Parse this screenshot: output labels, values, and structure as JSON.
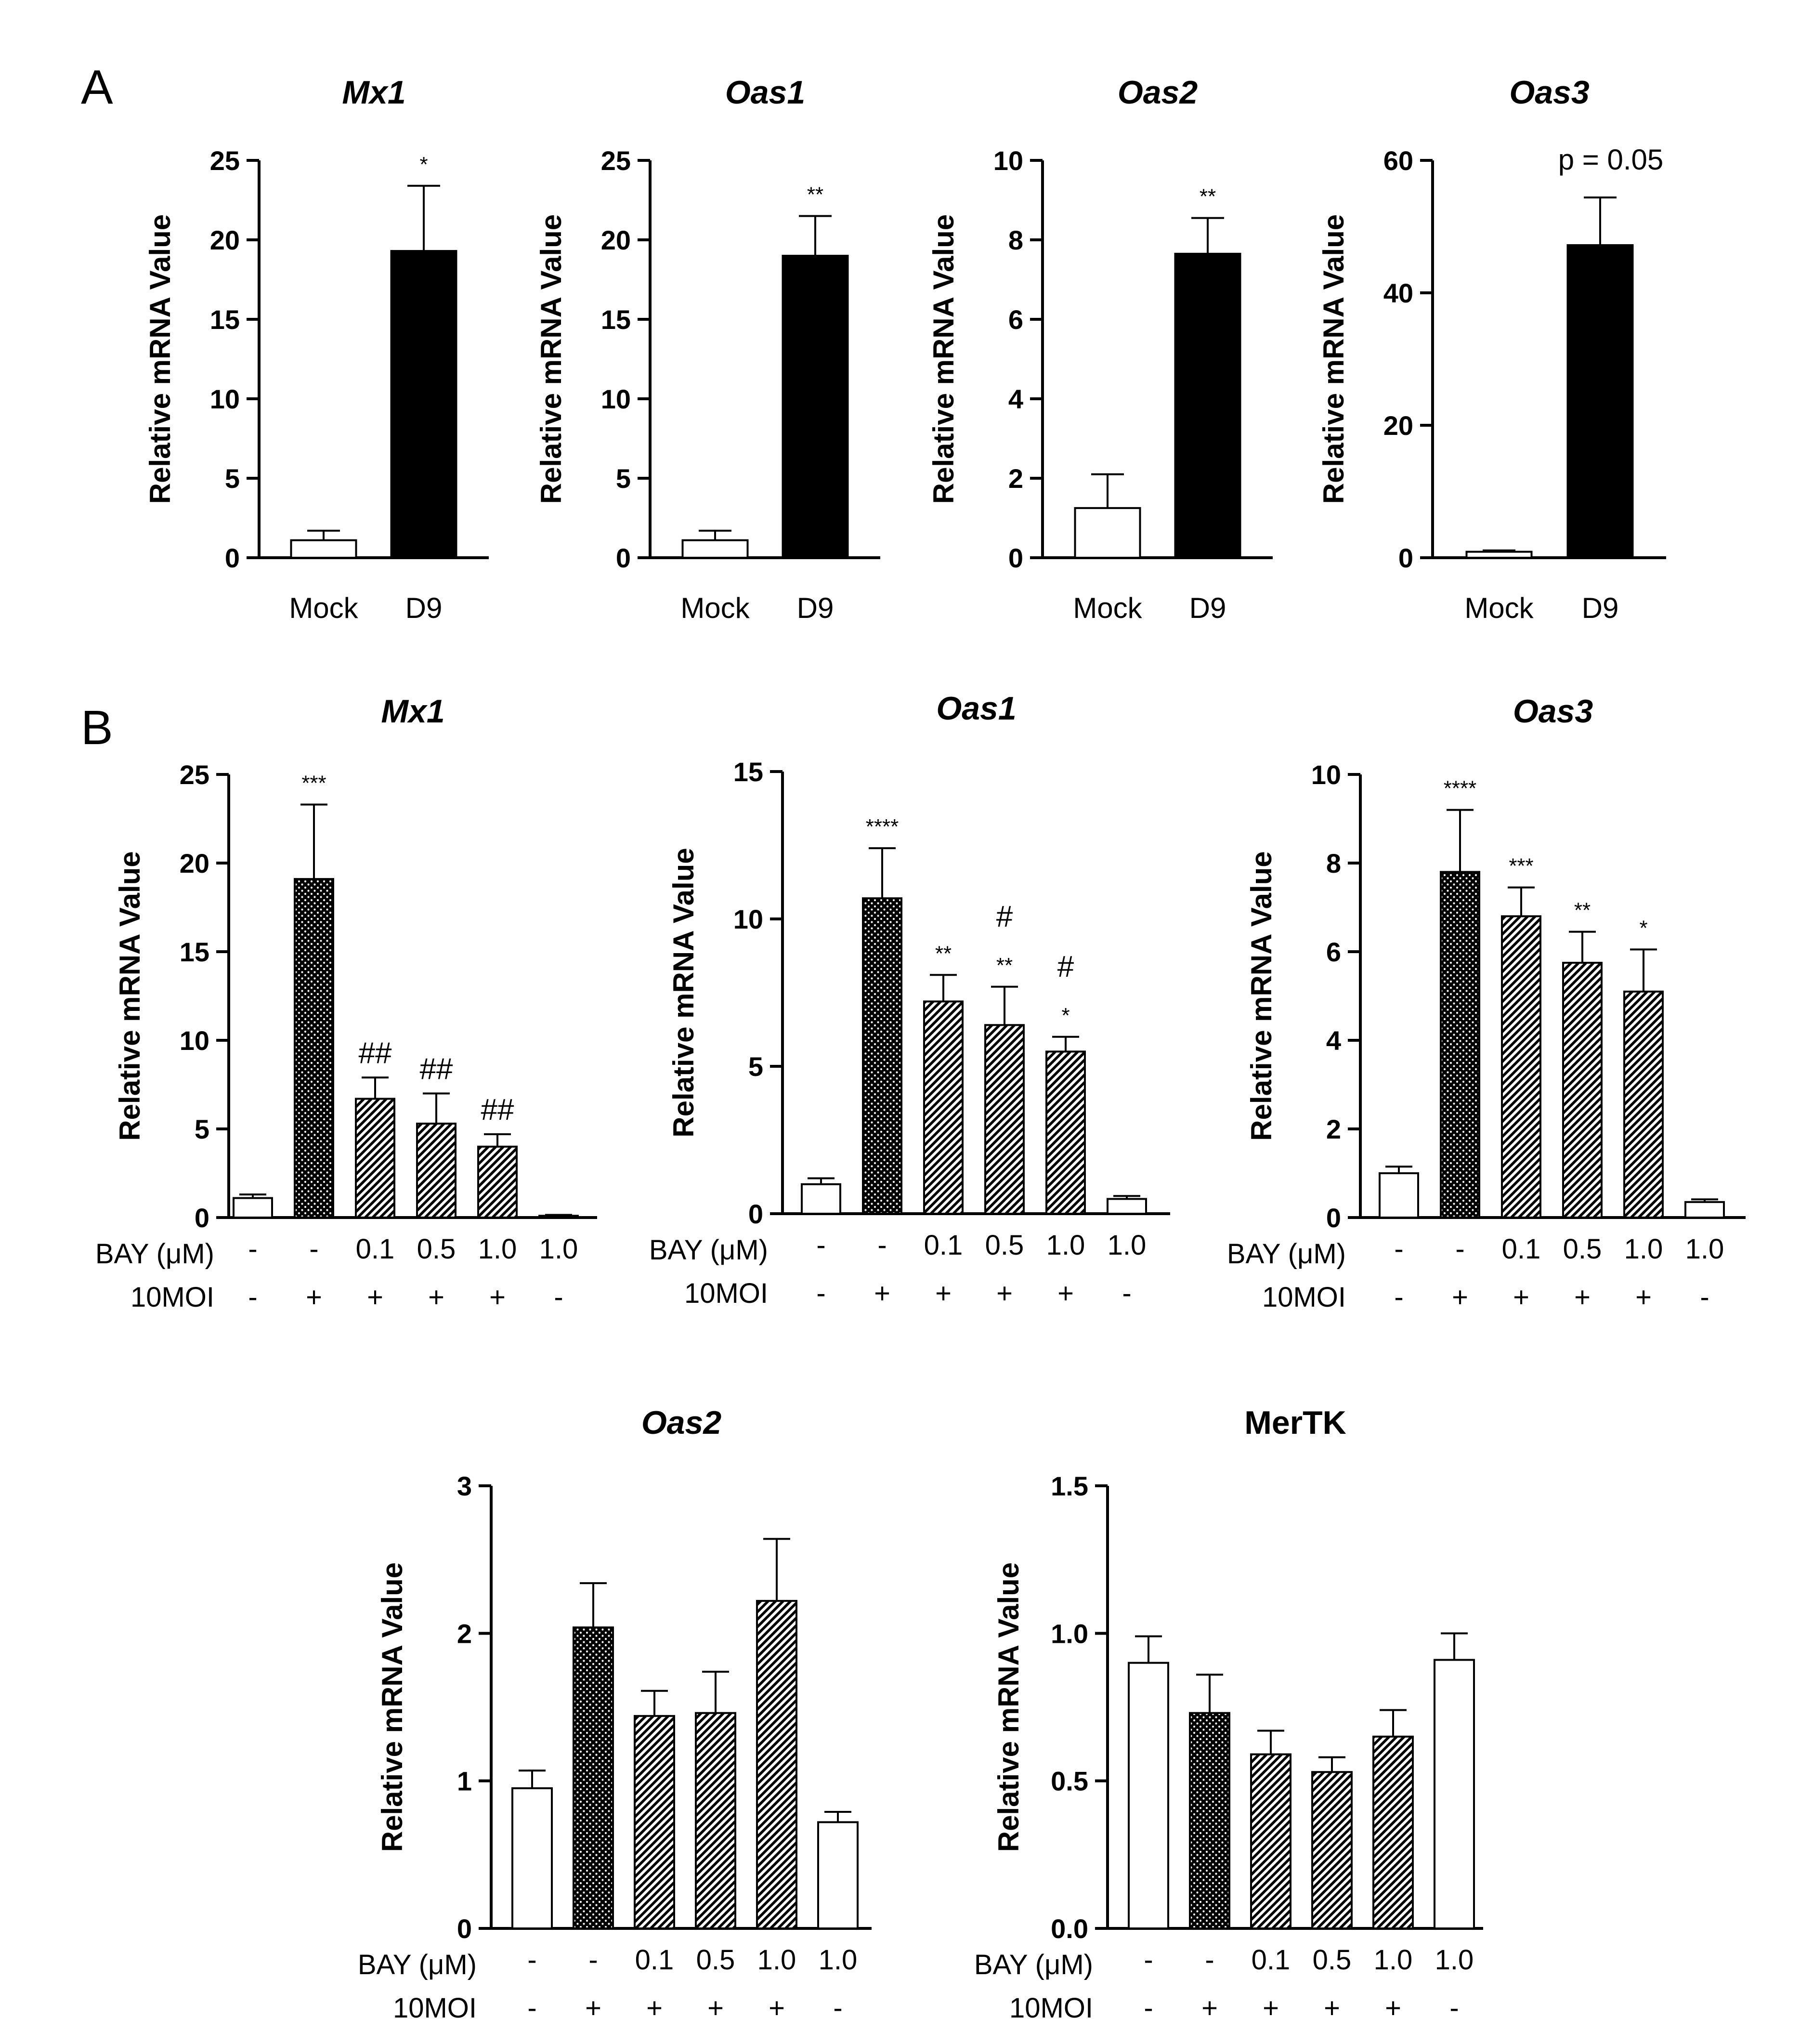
{
  "figure": {
    "panel_labels": [
      "A",
      "B"
    ],
    "ylabel": "Relative mRNA Value",
    "row_labels": {
      "bay": "BAY (μM)",
      "moi": "10MOI"
    },
    "treatment": {
      "bay": [
        "-",
        "-",
        "0.1",
        "0.5",
        "1.0",
        "1.0"
      ],
      "moi": [
        "-",
        "+",
        "+",
        "+",
        "+",
        "-"
      ]
    },
    "styles": {
      "open": {
        "fill": "#ffffff"
      },
      "solid": {
        "fill": "#000000"
      },
      "dotted": {
        "fill": "#000000",
        "pattern": "dots"
      },
      "hatched": {
        "fill": "#9a9a9a",
        "pattern": "diagonal-hatch"
      }
    }
  },
  "chart_data": [
    {
      "id": "A-Mx1",
      "panel": "A",
      "type": "bar",
      "title": "Mx1",
      "title_italic": true,
      "xlabel": "",
      "ylabel": "Relative mRNA Value",
      "ylim": [
        0,
        25
      ],
      "yticks": [
        0,
        5,
        10,
        15,
        20,
        25
      ],
      "categories": [
        "Mock",
        "D9"
      ],
      "values": [
        1.1,
        19.3
      ],
      "errors": [
        0.6,
        4.1
      ],
      "styles": [
        "open",
        "solid"
      ],
      "annotations": [
        "",
        "*"
      ],
      "note": ""
    },
    {
      "id": "A-Oas1",
      "panel": "A",
      "type": "bar",
      "title": "Oas1",
      "title_italic": true,
      "xlabel": "",
      "ylabel": "Relative mRNA Value",
      "ylim": [
        0,
        25
      ],
      "yticks": [
        0,
        5,
        10,
        15,
        20,
        25
      ],
      "categories": [
        "Mock",
        "D9"
      ],
      "values": [
        1.1,
        19.0
      ],
      "errors": [
        0.6,
        2.5
      ],
      "styles": [
        "open",
        "solid"
      ],
      "annotations": [
        "",
        "**"
      ],
      "note": ""
    },
    {
      "id": "A-Oas2",
      "panel": "A",
      "type": "bar",
      "title": "Oas2",
      "title_italic": true,
      "xlabel": "",
      "ylabel": "Relative mRNA Value",
      "ylim": [
        0,
        10
      ],
      "yticks": [
        0,
        2,
        4,
        6,
        8,
        10
      ],
      "categories": [
        "Mock",
        "D9"
      ],
      "values": [
        1.25,
        7.65
      ],
      "errors": [
        0.85,
        0.9
      ],
      "styles": [
        "open",
        "solid"
      ],
      "annotations": [
        "",
        "**"
      ],
      "note": ""
    },
    {
      "id": "A-Oas3",
      "panel": "A",
      "type": "bar",
      "title": "Oas3",
      "title_italic": true,
      "xlabel": "",
      "ylabel": "Relative mRNA Value",
      "ylim": [
        0,
        60
      ],
      "yticks": [
        0,
        20,
        40,
        60
      ],
      "categories": [
        "Mock",
        "D9"
      ],
      "values": [
        0.9,
        47.2
      ],
      "errors": [
        0.2,
        7.2
      ],
      "styles": [
        "open",
        "solid"
      ],
      "annotations": [
        "",
        ""
      ],
      "note": "p = 0.05"
    },
    {
      "id": "B-Mx1",
      "panel": "B",
      "type": "bar",
      "title": "Mx1",
      "title_italic": true,
      "xlabel": "",
      "ylabel": "Relative mRNA Value",
      "ylim": [
        0,
        25
      ],
      "yticks": [
        0,
        5,
        10,
        15,
        20,
        25
      ],
      "values": [
        1.1,
        19.1,
        6.7,
        5.3,
        4.0,
        0.1
      ],
      "errors": [
        0.2,
        4.2,
        1.2,
        1.7,
        0.7,
        0.05
      ],
      "styles": [
        "open",
        "dotted",
        "hatched",
        "hatched",
        "hatched",
        "open"
      ],
      "annotations": [
        [],
        [
          "***"
        ],
        [
          "##"
        ],
        [
          "##"
        ],
        [
          "##"
        ],
        []
      ],
      "note": ""
    },
    {
      "id": "B-Oas1",
      "panel": "B",
      "type": "bar",
      "title": "Oas1",
      "title_italic": true,
      "xlabel": "",
      "ylabel": "Relative mRNA Value",
      "ylim": [
        0,
        15
      ],
      "yticks": [
        0,
        5,
        10,
        15
      ],
      "values": [
        1.0,
        10.7,
        7.2,
        6.4,
        5.5,
        0.5
      ],
      "errors": [
        0.2,
        1.7,
        0.9,
        1.3,
        0.5,
        0.1
      ],
      "styles": [
        "open",
        "dotted",
        "hatched",
        "hatched",
        "hatched",
        "open"
      ],
      "annotations": [
        [],
        [
          "****"
        ],
        [
          "**"
        ],
        [
          "**",
          "#"
        ],
        [
          "*",
          "#"
        ],
        []
      ],
      "note": ""
    },
    {
      "id": "B-Oas3",
      "panel": "B",
      "type": "bar",
      "title": "Oas3",
      "title_italic": true,
      "xlabel": "",
      "ylabel": "Relative mRNA Value",
      "ylim": [
        0,
        10
      ],
      "yticks": [
        0,
        2,
        4,
        6,
        8,
        10
      ],
      "values": [
        1.0,
        7.8,
        6.8,
        5.75,
        5.1,
        0.35
      ],
      "errors": [
        0.15,
        1.4,
        0.65,
        0.7,
        0.95,
        0.06
      ],
      "styles": [
        "open",
        "dotted",
        "hatched",
        "hatched",
        "hatched",
        "open"
      ],
      "annotations": [
        [],
        [
          "****"
        ],
        [
          "***"
        ],
        [
          "**"
        ],
        [
          "*"
        ],
        []
      ],
      "note": ""
    },
    {
      "id": "B-Oas2",
      "panel": "B",
      "type": "bar",
      "title": "Oas2",
      "title_italic": true,
      "xlabel": "",
      "ylabel": "Relative mRNA Value",
      "ylim": [
        0,
        3
      ],
      "yticks": [
        0,
        1,
        2,
        3
      ],
      "values": [
        0.95,
        2.04,
        1.44,
        1.46,
        2.22,
        0.72
      ],
      "errors": [
        0.12,
        0.3,
        0.17,
        0.28,
        0.42,
        0.07
      ],
      "styles": [
        "open",
        "dotted",
        "hatched",
        "hatched",
        "hatched",
        "open"
      ],
      "annotations": [
        [],
        [],
        [],
        [],
        [],
        []
      ],
      "note": ""
    },
    {
      "id": "B-MerTK",
      "panel": "B",
      "type": "bar",
      "title": "MerTK",
      "title_italic": false,
      "xlabel": "",
      "ylabel": "Relative mRNA Value",
      "ylim": [
        0,
        1.5
      ],
      "yticks": [
        0.0,
        0.5,
        1.0,
        1.5
      ],
      "ytick_decimals": 1,
      "values": [
        0.9,
        0.73,
        0.59,
        0.53,
        0.65,
        0.91
      ],
      "errors": [
        0.09,
        0.13,
        0.08,
        0.05,
        0.09,
        0.09
      ],
      "styles": [
        "open",
        "dotted",
        "hatched",
        "hatched",
        "hatched",
        "open"
      ],
      "annotations": [
        [],
        [],
        [],
        [],
        [],
        []
      ],
      "note": ""
    }
  ]
}
